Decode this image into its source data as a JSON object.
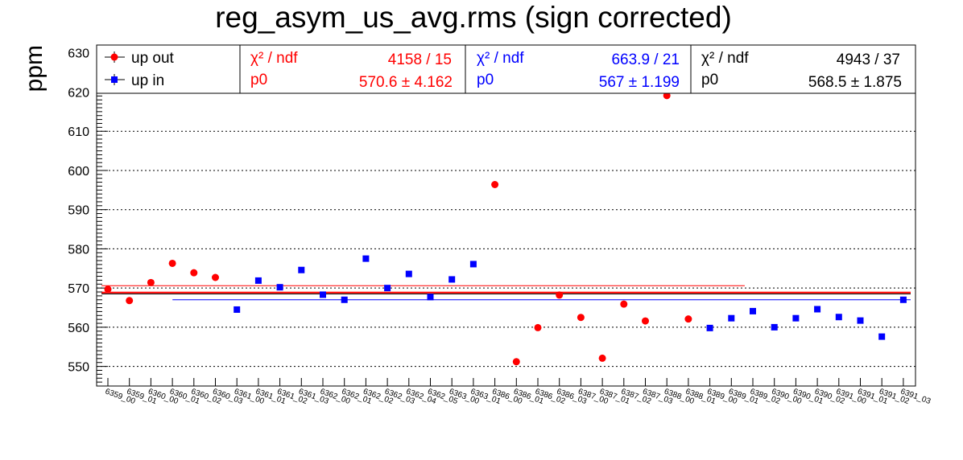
{
  "chart_data": {
    "type": "scatter",
    "title": "reg_asym_us_avg.rms (sign corrected)",
    "ylabel": "ppm",
    "xlabel": "",
    "ylim": [
      545,
      632
    ],
    "y_ticks": [
      "550",
      "560",
      "570",
      "580",
      "590",
      "600",
      "610",
      "620",
      "630"
    ],
    "grid": "horizontal dotted",
    "categories": [
      "6359_00",
      "6359_01",
      "6360_00",
      "6360_01",
      "6360_02",
      "6360_03",
      "6361_00",
      "6361_01",
      "6361_02",
      "6361_03",
      "6362_00",
      "6362_01",
      "6362_02",
      "6362_03",
      "6362_04",
      "6362_05",
      "6363_00",
      "6363_01",
      "6386_00",
      "6386_01",
      "6386_02",
      "6386_03",
      "6387_00",
      "6387_01",
      "6387_02",
      "6387_03",
      "6388_00",
      "6388_01",
      "6389_00",
      "6389_01",
      "6389_02",
      "6390_00",
      "6390_01",
      "6390_02",
      "6391_00",
      "6391_01",
      "6391_02",
      "6391_03"
    ],
    "series": [
      {
        "name": "up out",
        "color": "#ff0000",
        "marker": "circle",
        "points": [
          [
            0,
            569.7
          ],
          [
            1,
            566.8
          ],
          [
            2,
            571.4
          ],
          [
            3,
            576.3
          ],
          [
            4,
            573.9
          ],
          [
            5,
            572.7
          ],
          [
            18,
            596.4
          ],
          [
            19,
            551.2
          ],
          [
            20,
            559.9
          ],
          [
            21,
            568.2
          ],
          [
            22,
            562.5
          ],
          [
            23,
            552.1
          ],
          [
            24,
            565.9
          ],
          [
            25,
            561.6
          ],
          [
            26,
            619.1
          ],
          [
            27,
            562.1
          ]
        ]
      },
      {
        "name": "up in",
        "color": "#0000ff",
        "marker": "square",
        "points": [
          [
            6,
            564.5
          ],
          [
            7,
            571.9
          ],
          [
            8,
            570.2
          ],
          [
            9,
            574.6
          ],
          [
            10,
            568.3
          ],
          [
            11,
            567.0
          ],
          [
            12,
            577.5
          ],
          [
            13,
            570.0
          ],
          [
            14,
            573.6
          ],
          [
            15,
            567.7
          ],
          [
            16,
            572.2
          ],
          [
            17,
            576.1
          ],
          [
            28,
            559.8
          ],
          [
            29,
            562.3
          ],
          [
            30,
            564.1
          ],
          [
            31,
            560.0
          ],
          [
            32,
            562.3
          ],
          [
            33,
            564.6
          ],
          [
            34,
            562.6
          ],
          [
            35,
            561.7
          ],
          [
            36,
            557.6
          ],
          [
            37,
            567.0
          ]
        ]
      }
    ],
    "fits": [
      {
        "color": "#ff0000",
        "label": "χ² / ndf",
        "chi2": "4158 / 15",
        "p0_label": "p0",
        "p0": "570.6 ± 4.162",
        "value": 570.6
      },
      {
        "color": "#0000ff",
        "label": "χ² / ndf",
        "chi2": "663.9 / 21",
        "p0_label": "p0",
        "p0": "567 ± 1.199",
        "value": 567.0
      },
      {
        "color": "#000000",
        "label": "χ² / ndf",
        "chi2": "4943 / 37",
        "p0_label": "p0",
        "p0": "568.5 ± 1.875",
        "value": 568.5
      }
    ],
    "legend_position": "top-left"
  }
}
